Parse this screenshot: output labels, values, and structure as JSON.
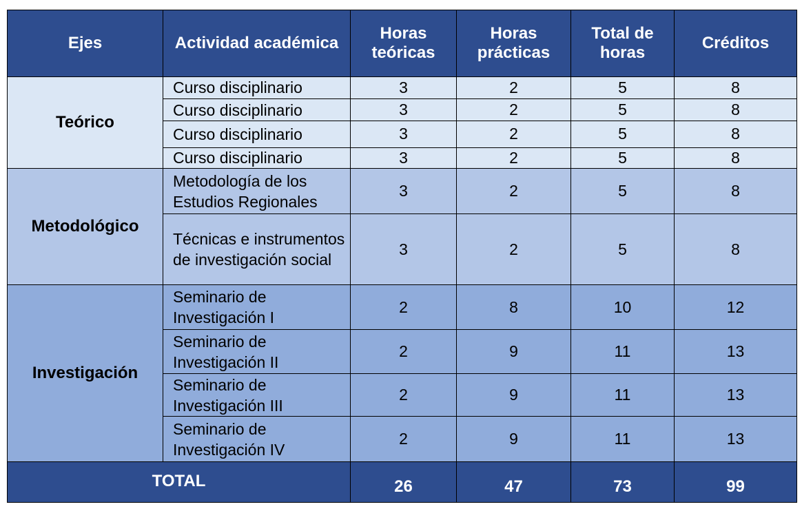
{
  "headers": {
    "ejes": "Ejes",
    "actividad": "Actividad académica",
    "horas_teoricas": "Horas teóricas",
    "horas_practicas": "Horas prácticas",
    "total_horas": "Total de horas",
    "creditos": "Créditos"
  },
  "groups": [
    {
      "eje": "Teórico",
      "rows": [
        {
          "actividad": "Curso disciplinario",
          "ht": "3",
          "hp": "2",
          "th": "5",
          "cr": "8"
        },
        {
          "actividad": "Curso disciplinario",
          "ht": "3",
          "hp": "2",
          "th": "5",
          "cr": "8"
        },
        {
          "actividad": "Curso disciplinario",
          "ht": "3",
          "hp": "2",
          "th": "5",
          "cr": "8"
        },
        {
          "actividad": "Curso disciplinario",
          "ht": "3",
          "hp": "2",
          "th": "5",
          "cr": "8"
        }
      ]
    },
    {
      "eje": "Metodológico",
      "rows": [
        {
          "actividad": "Metodología de los Estudios Regionales",
          "ht": "3",
          "hp": "2",
          "th": "5",
          "cr": "8"
        },
        {
          "actividad": "Técnicas e instrumentos de investigación social",
          "ht": "3",
          "hp": "2",
          "th": "5",
          "cr": "8"
        }
      ]
    },
    {
      "eje": "Investigación",
      "rows": [
        {
          "actividad": "Seminario de Investigación I",
          "ht": "2",
          "hp": "8",
          "th": "10",
          "cr": "12"
        },
        {
          "actividad": "Seminario de Investigación II",
          "ht": "2",
          "hp": "9",
          "th": "11",
          "cr": "13"
        },
        {
          "actividad": "Seminario de Investigación III",
          "ht": "2",
          "hp": "9",
          "th": "11",
          "cr": "13"
        },
        {
          "actividad": "Seminario de Investigación IV",
          "ht": "2",
          "hp": "9",
          "th": "11",
          "cr": "13"
        }
      ]
    }
  ],
  "total": {
    "label": "TOTAL",
    "ht": "26",
    "hp": "47",
    "th": "73",
    "cr": "99"
  },
  "colors": {
    "header": "#2e4d8f",
    "teorico": "#dbe7f5",
    "metodologico": "#b3c6e7",
    "investigacion": "#90acdb"
  }
}
